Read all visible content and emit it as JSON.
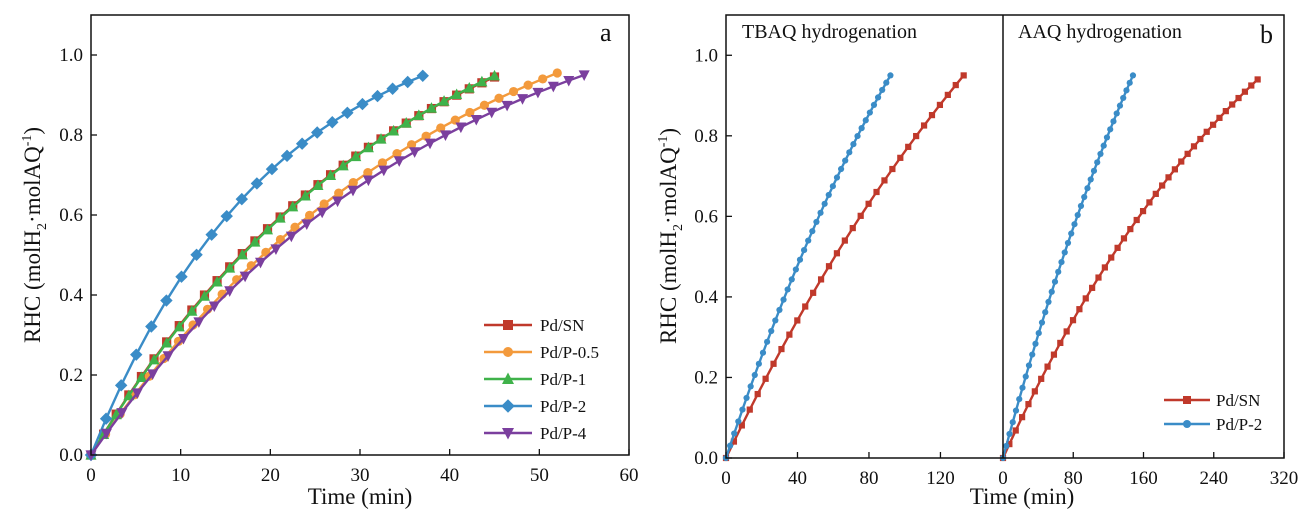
{
  "chart_data": [
    {
      "type": "line",
      "panel_label": "a",
      "xlabel": "Time (min)",
      "ylabel": "RHC (molH",
      "ylabel_sub": "2",
      "ylabel_mid": "·molAQ",
      "ylabel_sup": "-1",
      "ylabel_end": ")",
      "xlim": [
        0,
        60
      ],
      "ylim": [
        0,
        1.1
      ],
      "xticks": [
        0,
        10,
        20,
        30,
        40,
        50,
        60
      ],
      "yticks": [
        0.0,
        0.2,
        0.4,
        0.6,
        0.8,
        1.0
      ],
      "xtick_labels": [
        "0",
        "10",
        "20",
        "30",
        "40",
        "50",
        "60"
      ],
      "ytick_labels": [
        "0.0",
        "0.2",
        "0.4",
        "0.6",
        "0.8",
        "1.0"
      ],
      "legend_position": "bottom-right",
      "series": [
        {
          "name": "Pd/SN",
          "color": "#c0392b",
          "marker": "square",
          "x_end": 45,
          "y_end": 0.945,
          "shape": 1.32,
          "points": 32
        },
        {
          "name": "Pd/P-0.5",
          "color": "#f39a3c",
          "marker": "circle",
          "x_end": 52,
          "y_end": 0.955,
          "shape": 1.3,
          "points": 32
        },
        {
          "name": "Pd/P-1",
          "color": "#3fb24a",
          "marker": "triangle-up",
          "x_end": 45,
          "y_end": 0.948,
          "shape": 1.28,
          "points": 32
        },
        {
          "name": "Pd/P-2",
          "color": "#3a8cc7",
          "marker": "diamond",
          "x_end": 37,
          "y_end": 0.948,
          "shape": 1.85,
          "points": 22
        },
        {
          "name": "Pd/P-4",
          "color": "#7b3f9e",
          "marker": "triangle-down",
          "x_end": 55,
          "y_end": 0.95,
          "shape": 1.4,
          "points": 32
        }
      ]
    },
    {
      "type": "line",
      "panel_label": "b",
      "xlabel": "Time (min)",
      "ylabel": "RHC (molH",
      "ylabel_sub": "2",
      "ylabel_mid": "·molAQ",
      "ylabel_sup": "-1",
      "ylabel_end": ")",
      "ylim": [
        0,
        1.1
      ],
      "yticks": [
        0.0,
        0.2,
        0.4,
        0.6,
        0.8,
        1.0
      ],
      "ytick_labels": [
        "0.0",
        "0.2",
        "0.4",
        "0.6",
        "0.8",
        "1.0"
      ],
      "legend_position": "bottom-right",
      "legend_series": [
        {
          "name": "Pd/SN",
          "color": "#c0392b",
          "marker": "square"
        },
        {
          "name": "Pd/P-2",
          "color": "#3a8cc7",
          "marker": "circle"
        }
      ],
      "subpanels": [
        {
          "title": "TBAQ hydrogenation",
          "xlim": [
            0,
            155
          ],
          "xticks": [
            0,
            40,
            80,
            120
          ],
          "xtick_labels": [
            "0",
            "40",
            "80",
            "120"
          ],
          "series": [
            {
              "name": "Pd/SN",
              "color": "#c0392b",
              "marker": "square",
              "x_end": 133,
              "y_end": 0.95,
              "shape": 0.55,
              "points": 30
            },
            {
              "name": "Pd/P-2",
              "color": "#3a8cc7",
              "marker": "circle",
              "x_end": 92,
              "y_end": 0.95,
              "shape": 0.55,
              "points": 40
            }
          ]
        },
        {
          "title": "AAQ hydrogenation",
          "xlim": [
            0,
            320
          ],
          "xticks": [
            0,
            80,
            160,
            240,
            320
          ],
          "xtick_labels": [
            "0",
            "80",
            "160",
            "240",
            "320"
          ],
          "series": [
            {
              "name": "Pd/SN",
              "color": "#c0392b",
              "marker": "square",
              "x_end": 290,
              "y_end": 0.94,
              "shape": 0.85,
              "points": 40
            },
            {
              "name": "Pd/P-2",
              "color": "#3a8cc7",
              "marker": "circle",
              "x_end": 148,
              "y_end": 0.95,
              "shape": 0.5,
              "points": 40
            }
          ]
        }
      ]
    }
  ]
}
